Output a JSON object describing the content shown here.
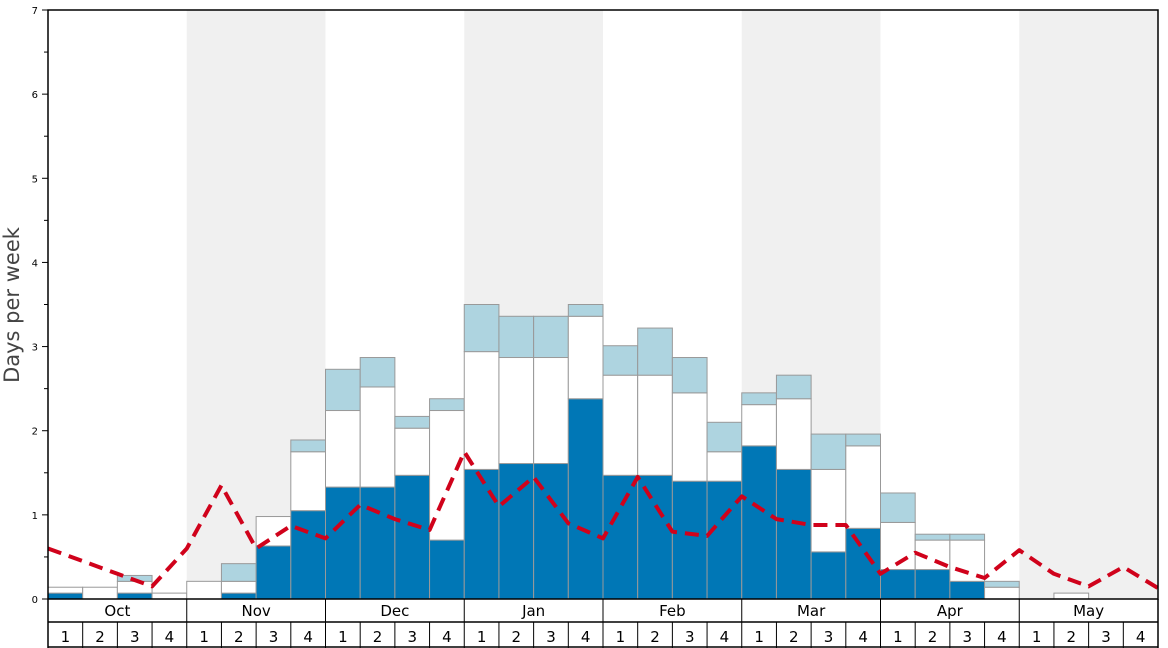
{
  "chart_data": {
    "type": "bar",
    "ylabel": "Days per week",
    "ylim": [
      0,
      7
    ],
    "yticks": [
      "0",
      "1",
      "2",
      "3",
      "4",
      "5",
      "6",
      "7"
    ],
    "months": [
      "Oct",
      "Nov",
      "Dec",
      "Jan",
      "Feb",
      "Mar",
      "Apr",
      "May"
    ],
    "weeks": [
      "1",
      "2",
      "3",
      "4"
    ],
    "series": [
      {
        "name": "",
        "color": "#0077b6",
        "values": [
          0.07,
          0,
          0.07,
          0,
          0,
          0.07,
          0.63,
          1.05,
          1.33,
          1.33,
          1.47,
          0.7,
          1.54,
          1.61,
          1.61,
          2.38,
          1.47,
          1.47,
          1.4,
          1.4,
          1.82,
          1.54,
          0.56,
          0.84,
          0.35,
          0.35,
          0.21,
          0,
          0,
          0,
          0,
          0
        ]
      },
      {
        "name": "",
        "color": "#ffffff",
        "values": [
          0.07,
          0.14,
          0.14,
          0.07,
          0.21,
          0.14,
          0.35,
          0.7,
          0.91,
          1.19,
          0.56,
          1.54,
          1.4,
          1.26,
          1.26,
          0.98,
          1.19,
          1.19,
          1.05,
          0.35,
          0.49,
          0.84,
          0.98,
          0.98,
          0.56,
          0.35,
          0.49,
          0.14,
          0,
          0.07,
          0,
          0
        ]
      },
      {
        "name": "",
        "color": "#aed4e0",
        "values": [
          0,
          0,
          0.07,
          0,
          0,
          0.21,
          0,
          0.14,
          0.49,
          0.35,
          0.14,
          0.14,
          0.56,
          0.49,
          0.49,
          0.14,
          0.35,
          0.56,
          0.42,
          0.35,
          0.14,
          0.28,
          0.42,
          0.14,
          0.35,
          0.07,
          0.07,
          0.07,
          0,
          0,
          0,
          0
        ]
      },
      {
        "name": "",
        "color": "#d0021b",
        "values": [
          0.6,
          0.45,
          0.3,
          0.15,
          0.6,
          1.35,
          0.6,
          0.87,
          0.72,
          1.12,
          0.95,
          0.82,
          1.75,
          1.1,
          1.45,
          0.9,
          0.72,
          1.45,
          0.8,
          0.75,
          1.22,
          0.95,
          0.88,
          0.88,
          0.3,
          0.55,
          0.38,
          0.25,
          0.58,
          0.3,
          0.15,
          0.38,
          0.13
        ]
      }
    ],
    "shaded_months": [
      "Nov",
      "Jan",
      "Mar",
      "May"
    ],
    "shade_color": "#f0f0f0"
  }
}
